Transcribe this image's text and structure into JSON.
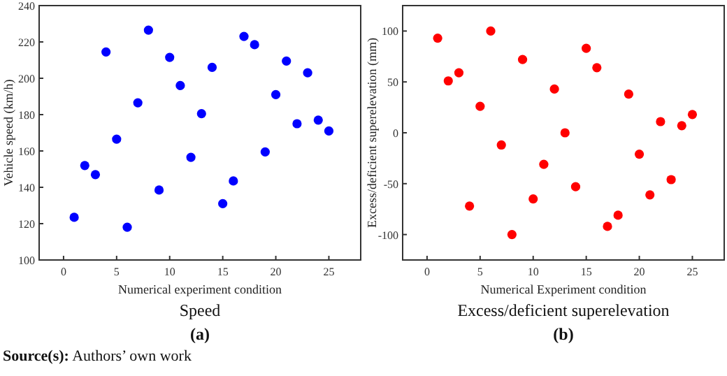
{
  "chart_data": [
    {
      "type": "scatter",
      "title": "Speed",
      "subtitle": "(a)",
      "xlabel": "Numerical experiment condition",
      "ylabel": "Vehicle speed (km/h)",
      "x": [
        1,
        2,
        3,
        4,
        5,
        6,
        7,
        8,
        9,
        10,
        11,
        12,
        13,
        14,
        15,
        16,
        17,
        18,
        19,
        20,
        21,
        22,
        23,
        24,
        25
      ],
      "series": [
        {
          "color": "#0000ff",
          "values": [
            123.5,
            152,
            147,
            214.5,
            166.5,
            118,
            186.5,
            226.5,
            138.5,
            211.5,
            196,
            156.5,
            180.5,
            206,
            131,
            143.5,
            223,
            218.5,
            159.5,
            191,
            209.5,
            175,
            203,
            177,
            171
          ]
        }
      ],
      "xlim": [
        -2.3,
        28
      ],
      "xticks": [
        0,
        5,
        10,
        15,
        20,
        25
      ],
      "ylim": [
        100,
        240
      ],
      "yticks": [
        100,
        120,
        140,
        160,
        180,
        200,
        220,
        240
      ],
      "marker": "circle",
      "grid": false,
      "annotations": [
        "Source(s): Authors’ own work"
      ]
    },
    {
      "type": "scatter",
      "title": "Excess/deficient superelevation",
      "subtitle": "(b)",
      "xlabel": "Numerical Experiment condition",
      "ylabel": "Excess/deficient superelevation (mm)",
      "x": [
        1,
        2,
        3,
        4,
        5,
        6,
        7,
        8,
        9,
        10,
        11,
        12,
        13,
        14,
        15,
        16,
        17,
        18,
        19,
        20,
        21,
        22,
        23,
        24,
        25
      ],
      "series": [
        {
          "color": "#ff0000",
          "values": [
            93,
            51,
            59,
            -72,
            26,
            100,
            -12,
            -100,
            72,
            -65,
            -31,
            43,
            0,
            -53,
            83,
            64,
            -92,
            -81,
            38,
            -21,
            -61,
            11,
            -46,
            7,
            18
          ]
        }
      ],
      "xlim": [
        -2.3,
        28
      ],
      "xticks": [
        0,
        5,
        10,
        15,
        20,
        25
      ],
      "ylim": [
        -125,
        125
      ],
      "yticks": [
        -100,
        -50,
        0,
        50,
        100
      ],
      "marker": "circle",
      "grid": false
    }
  ]
}
